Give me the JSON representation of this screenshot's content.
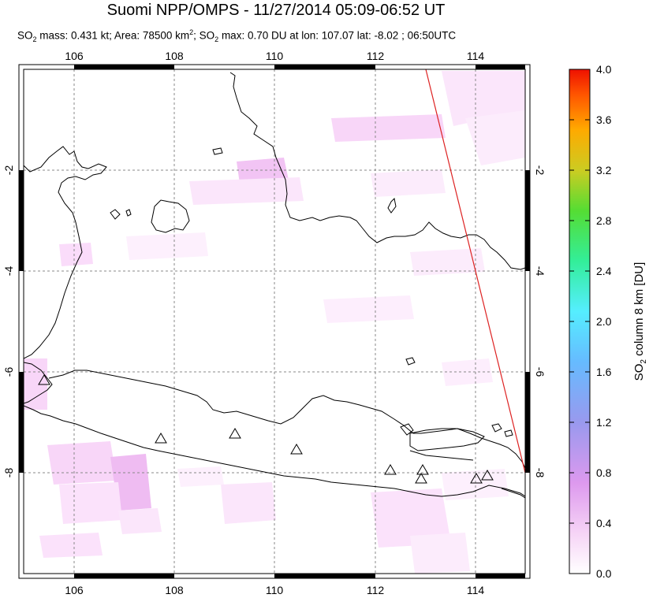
{
  "title": "Suomi NPP/OMPS - 11/27/2014 05:09-06:52 UT",
  "subtitle": {
    "p1": "SO",
    "p1_sub": "2",
    "p2": " mass: 0.431 kt; Area: 78500 km",
    "p2_sup": "2",
    "p3": "; SO",
    "p3_sub": "2",
    "p4": " max: 0.70 DU at lon: 107.07 lat: -8.02 ; 06:50UTC"
  },
  "map": {
    "lon_ticks": [
      "106",
      "108",
      "110",
      "112",
      "114"
    ],
    "lat_ticks_left": [
      "-2",
      "-4",
      "-6",
      "-8"
    ],
    "lat_ticks_right": [
      "-2",
      "-4",
      "-6",
      "-8"
    ],
    "lon_range": [
      105,
      115
    ],
    "lat_range": [
      -10,
      0
    ],
    "grid": true
  },
  "colorbar": {
    "ticks": [
      "4.0",
      "3.6",
      "3.2",
      "2.8",
      "2.4",
      "2.0",
      "1.6",
      "1.2",
      "0.8",
      "0.4",
      "0.0"
    ],
    "label_pre": "SO",
    "label_sub": "2",
    "label_post": " column 8 km [DU]",
    "colors": [
      "#ffffff",
      "#f4c8f4",
      "#cc99f0",
      "#9999ee",
      "#66bbff",
      "#55eeff",
      "#33ee99",
      "#44dd44",
      "#cccc22",
      "#ffaa00",
      "#ff5500",
      "#ee1100"
    ]
  },
  "colors": {
    "orbit_line": "#dd2222",
    "grid": "#888888",
    "coast": "#000000"
  }
}
